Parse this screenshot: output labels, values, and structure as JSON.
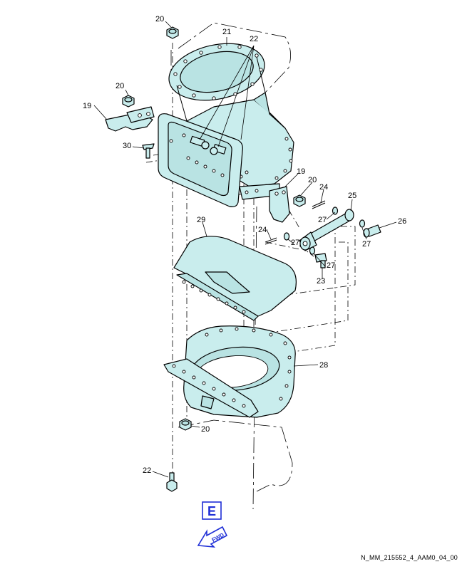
{
  "callouts": {
    "c20_top": "20",
    "c21": "21",
    "c22_top": "22",
    "c20_left": "20",
    "c19_left": "19",
    "c30": "30",
    "c19_right": "19",
    "c20_right": "20",
    "c24_top": "24",
    "c25": "25",
    "c27_a": "27",
    "c26": "26",
    "c29": "29",
    "c27_b": "27",
    "c24_mid": "24",
    "c27_c": "27",
    "c27_d": "27",
    "c23": "23",
    "c28": "28",
    "c20_bottom": "20",
    "c22_bottom": "22"
  },
  "view_marker": "E",
  "fwd_label": "FWD",
  "figure_id": "N_MM_215552_4_AAM0_04_00",
  "colors": {
    "part_fill": "#c9eded",
    "view_blue": "#1f2fd6"
  }
}
